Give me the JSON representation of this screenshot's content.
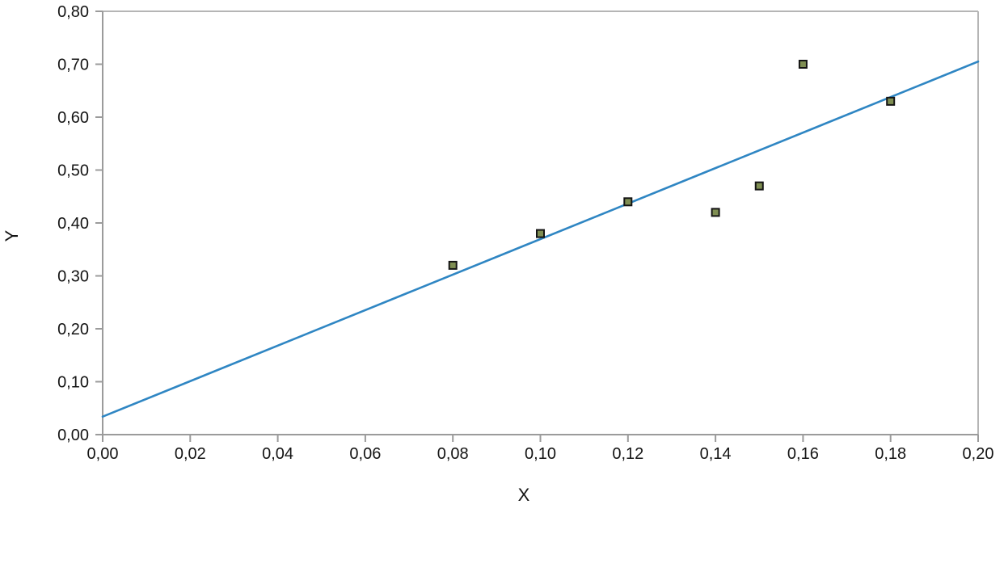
{
  "chart_data": {
    "type": "scatter",
    "title": "",
    "xlabel": "X",
    "ylabel": "Y",
    "xlim": [
      0.0,
      0.2
    ],
    "ylim": [
      0.0,
      0.8
    ],
    "grid": false,
    "legend": "none",
    "decimal_separator": ",",
    "x_ticks": {
      "values": [
        0.0,
        0.02,
        0.04,
        0.06,
        0.08,
        0.1,
        0.12,
        0.14,
        0.16,
        0.18,
        0.2
      ],
      "labels": [
        "0,00",
        "0,02",
        "0,04",
        "0,06",
        "0,08",
        "0,10",
        "0,12",
        "0,14",
        "0,16",
        "0,18",
        "0,20"
      ]
    },
    "y_ticks": {
      "values": [
        0.0,
        0.1,
        0.2,
        0.3,
        0.4,
        0.5,
        0.6,
        0.7,
        0.8
      ],
      "labels": [
        "0,00",
        "0,10",
        "0,20",
        "0,30",
        "0,40",
        "0,50",
        "0,60",
        "0,70",
        "0,80"
      ]
    },
    "series": [
      {
        "name": "trend-line",
        "type": "line",
        "color": "#2f86c3",
        "x": [
          0.0,
          0.2
        ],
        "y": [
          0.034,
          0.705
        ]
      },
      {
        "name": "observations",
        "type": "scatter",
        "marker": "square",
        "marker_fill": "#7f8e52",
        "marker_border": "#141414",
        "points": [
          [
            0.08,
            0.32
          ],
          [
            0.1,
            0.38
          ],
          [
            0.12,
            0.44
          ],
          [
            0.14,
            0.42
          ],
          [
            0.15,
            0.47
          ],
          [
            0.16,
            0.7
          ],
          [
            0.18,
            0.63
          ]
        ]
      }
    ],
    "colors": {
      "background": "#ffffff",
      "axis_line": "#9b9b9b",
      "plot_border": "#b5b5b5",
      "tick_label": "#141414",
      "axis_title": "#141414"
    }
  }
}
